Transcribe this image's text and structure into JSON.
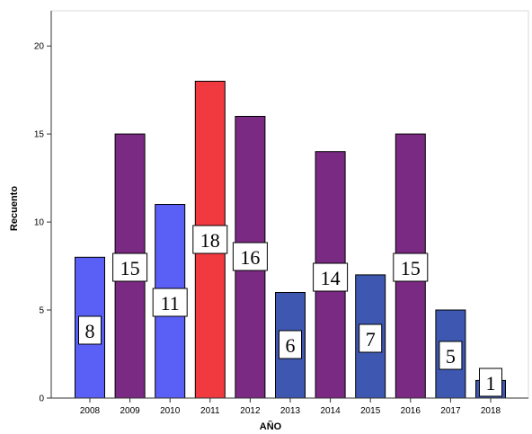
{
  "chart_data": {
    "type": "bar",
    "xlabel": "AÑO",
    "ylabel": "Recuento",
    "ylim": [
      0,
      22
    ],
    "yticks": [
      0,
      5,
      10,
      15,
      20
    ],
    "grid": false,
    "categories": [
      "2008",
      "2009",
      "2010",
      "2011",
      "2012",
      "2013",
      "2014",
      "2015",
      "2016",
      "2017",
      "2018"
    ],
    "values": [
      8,
      15,
      11,
      18,
      16,
      6,
      14,
      7,
      15,
      5,
      1
    ],
    "bar_colors": [
      "#5a5ff5",
      "#7a2a82",
      "#5a5ff5",
      "#f03a40",
      "#7a2a82",
      "#3e57b0",
      "#7a2a82",
      "#3e57b0",
      "#7a2a82",
      "#3e57b0",
      "#3e57b0"
    ],
    "data_labels": [
      "8",
      "15",
      "11",
      "18",
      "16",
      "6",
      "14",
      "7",
      "15",
      "5",
      "1"
    ]
  }
}
